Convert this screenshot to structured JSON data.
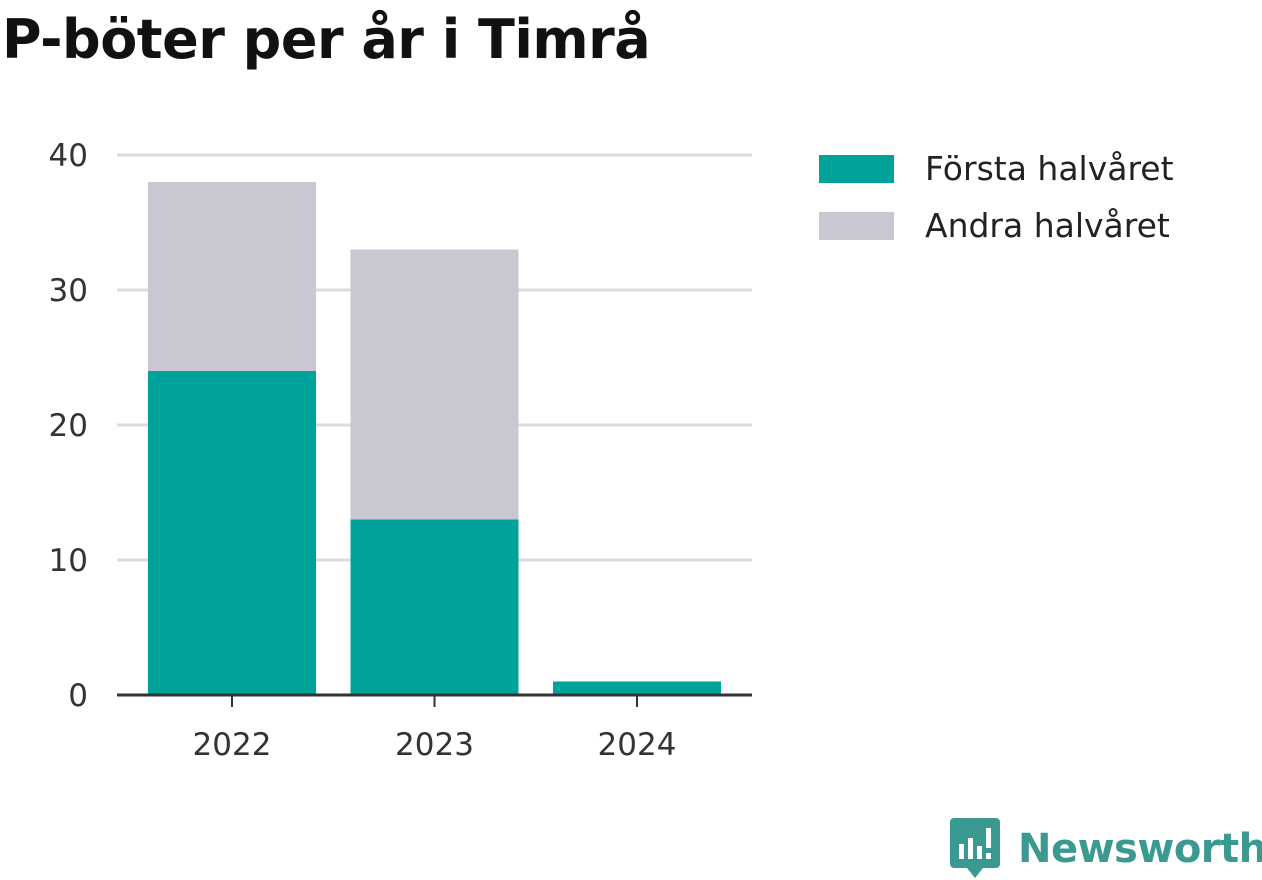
{
  "chart_data": {
    "type": "bar",
    "stacked": true,
    "title": "P-böter per år i Timrå",
    "categories": [
      "2022",
      "2023",
      "2024"
    ],
    "series": [
      {
        "name": "Första halvåret",
        "values": [
          24,
          13,
          1
        ],
        "color": "#00a39a"
      },
      {
        "name": "Andra halvåret",
        "values": [
          14,
          20,
          0
        ],
        "color": "#c8c7d2"
      }
    ],
    "xlabel": "",
    "ylabel": "",
    "ylim": [
      0,
      40
    ],
    "yticks": [
      "0",
      "10",
      "20",
      "30",
      "40"
    ],
    "grid": true,
    "legend": "top-right"
  },
  "brand": {
    "name": "Newsworthy",
    "icon": "newsworthy-logo-icon",
    "color": "#3a9991"
  }
}
